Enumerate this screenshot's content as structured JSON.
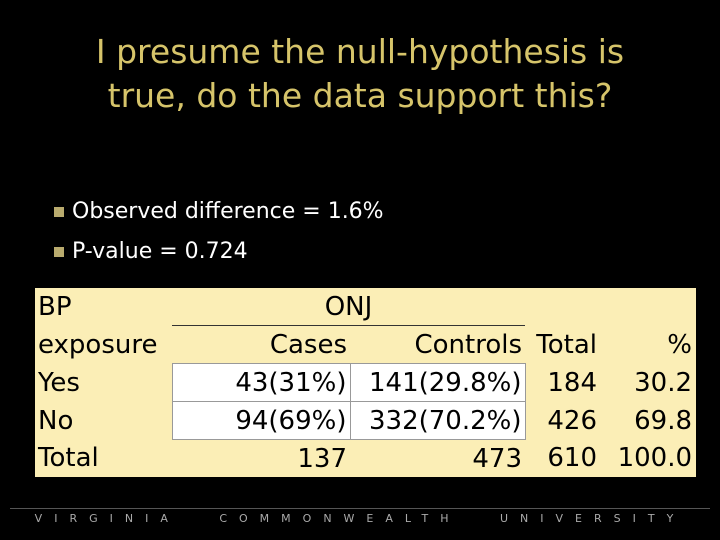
{
  "title_lines": [
    "I presume the null-hypothesis is",
    "true, do the data support this?"
  ],
  "bullets": [
    "Observed difference = 1.6%",
    "P-value = 0.724"
  ],
  "table": {
    "rows": [
      [
        "BP",
        "ONJ"
      ],
      [
        "exposure",
        "Cases",
        "Controls",
        "Total",
        "%"
      ],
      [
        "Yes",
        "43(31%)",
        "141(29.8%)",
        "184",
        "30.2"
      ],
      [
        "No",
        "94(69%)",
        "332(70.2%)",
        "426",
        "69.8"
      ],
      [
        "Total",
        "137",
        "473",
        "610",
        "100.0"
      ]
    ]
  },
  "footer": "VIRGINIA COMMONWEALTH UNIVERSITY"
}
